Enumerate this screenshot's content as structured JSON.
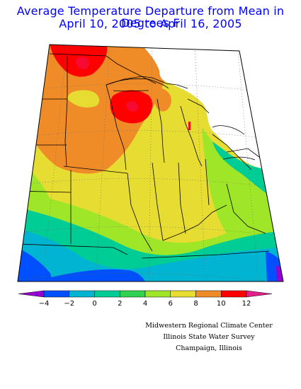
{
  "title": {
    "line1": "Average Temperature Departure from Mean in Degrees F",
    "line2": "April 10, 2005 to April 16, 2005"
  },
  "legend": {
    "ticks": [
      "−4",
      "−2",
      "0",
      "2",
      "4",
      "6",
      "8",
      "10",
      "12"
    ],
    "colors": [
      "#9400d3",
      "#0050ff",
      "#00b4d2",
      "#00cc96",
      "#32d250",
      "#a0e628",
      "#e6dc32",
      "#f08c28",
      "#ff0000",
      "#e61e8c"
    ]
  },
  "credits": {
    "line1": "Midwestern Regional Climate Center",
    "line2": "Illinois State Water Survey",
    "line3": "Champaign, Illinois"
  }
}
